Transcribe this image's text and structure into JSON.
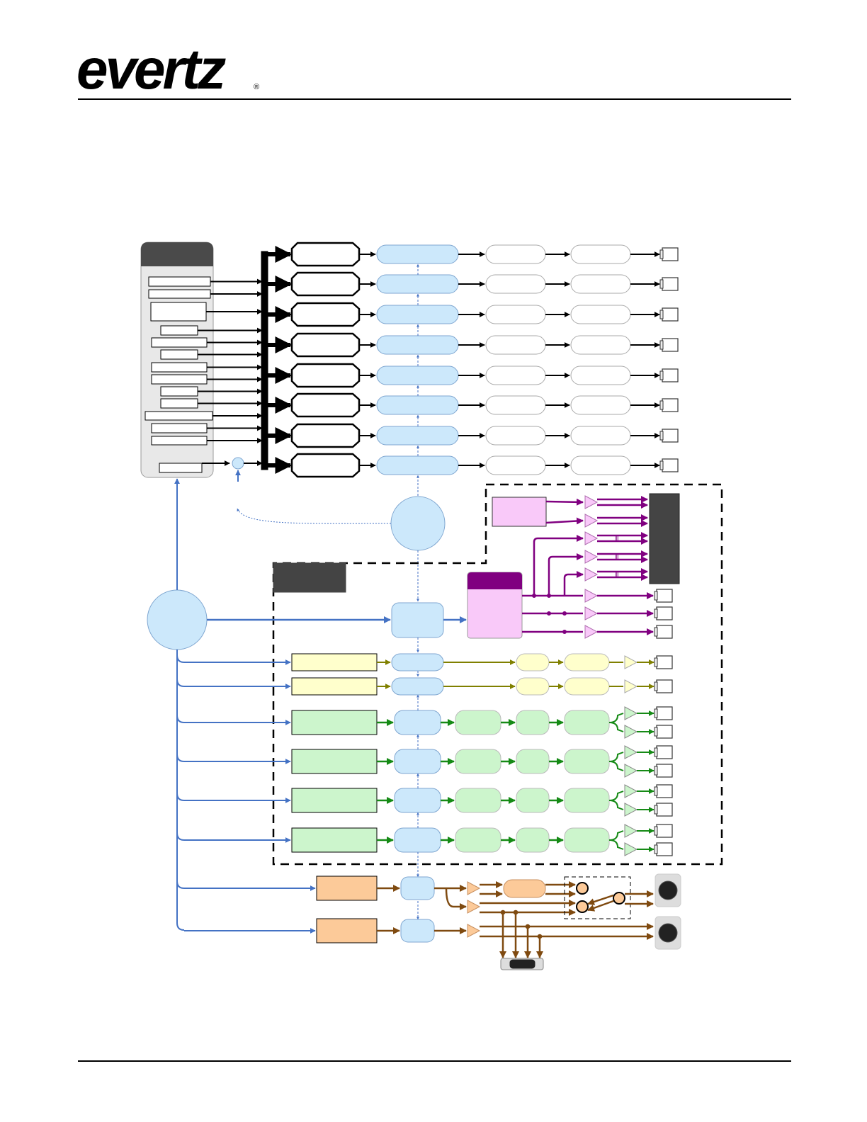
{
  "header": {
    "logo_text": "evertz",
    "registered_mark": "®"
  },
  "colors": {
    "video_line": "#000000",
    "control_line": "#4472c4",
    "processing_fill": "#cce8fb",
    "aes_line": "#800080",
    "aes_fill": "#f9c9f9",
    "analog_video_line": "#808000",
    "analog_video_fill": "#ffffcc",
    "green_line": "#158a15",
    "green_fill": "#ccf5cc",
    "audio_line": "#7f4a10",
    "audio_fill": "#fcca99",
    "panel_header": "#4a4a4a"
  }
}
